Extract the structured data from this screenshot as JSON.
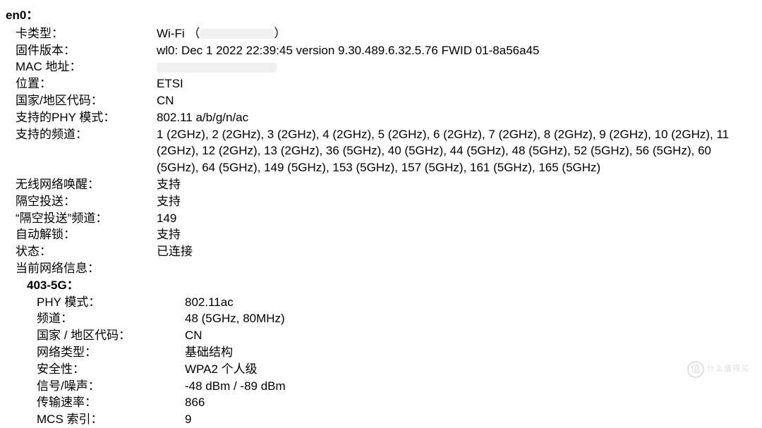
{
  "interface": {
    "name": "en0：",
    "card_type": {
      "label": "卡类型：",
      "value_prefix": "Wi-Fi （",
      "value_suffix": "）"
    },
    "firmware": {
      "label": "固件版本：",
      "value": "wl0: Dec  1 2022 22:39:45 version 9.30.489.6.32.5.76 FWID 01-8a56a45"
    },
    "mac": {
      "label": "MAC 地址："
    },
    "location": {
      "label": "位置：",
      "value": "ETSI"
    },
    "country": {
      "label": "国家/地区代码：",
      "value": "CN"
    },
    "phy_modes": {
      "label": "支持的PHY 模式：",
      "value": "802.11 a/b/g/n/ac"
    },
    "channels": {
      "label": "支持的频道：",
      "value": "1 (2GHz), 2 (2GHz), 3 (2GHz), 4 (2GHz), 5 (2GHz), 6 (2GHz), 7 (2GHz), 8 (2GHz), 9 (2GHz), 10 (2GHz), 11 (2GHz), 12 (2GHz), 13 (2GHz), 36 (5GHz), 40 (5GHz), 44 (5GHz), 48 (5GHz), 52 (5GHz), 56 (5GHz), 60 (5GHz), 64 (5GHz), 149 (5GHz), 153 (5GHz), 157 (5GHz), 161 (5GHz), 165 (5GHz)"
    },
    "wake": {
      "label": "无线网络唤醒：",
      "value": "支持"
    },
    "airdrop": {
      "label": "隔空投送：",
      "value": "支持"
    },
    "airdrop_channel": {
      "label": "“隔空投送”频道：",
      "value": "149"
    },
    "auto_unlock": {
      "label": "自动解锁：",
      "value": "支持"
    },
    "status": {
      "label": "状态：",
      "value": "已连接"
    },
    "current_network_header": "当前网络信息：",
    "network": {
      "name": "403-5G：",
      "phy": {
        "label": "PHY 模式：",
        "value": "802.11ac"
      },
      "channel": {
        "label": "频道：",
        "value": "48 (5GHz, 80MHz)"
      },
      "country": {
        "label": "国家 / 地区代码：",
        "value": "CN"
      },
      "net_type": {
        "label": "网络类型：",
        "value": "基础结构"
      },
      "security": {
        "label": "安全性：",
        "value": "WPA2 个人级"
      },
      "snr": {
        "label": "信号/噪声：",
        "value": "-48 dBm / -89 dBm"
      },
      "tx_rate": {
        "label": "传输速率：",
        "value": "866"
      },
      "mcs": {
        "label": "MCS 索引：",
        "value": "9"
      }
    }
  },
  "watermark": {
    "icon": "值",
    "text": "什么值得买"
  }
}
